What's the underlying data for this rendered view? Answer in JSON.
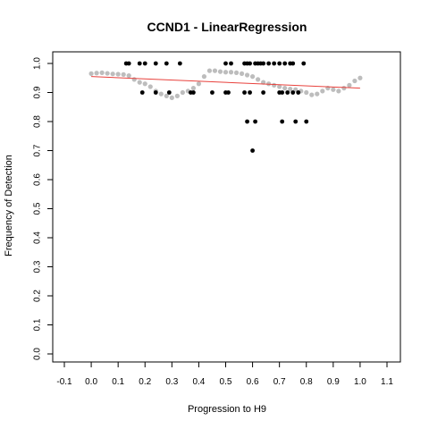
{
  "chart_data": {
    "type": "scatter",
    "title": "CCND1 - LinearRegression",
    "xlabel": "Progression to H9",
    "ylabel": "Frequency of Detection",
    "xlim": [
      -0.1,
      1.1
    ],
    "ylim": [
      0.0,
      1.0
    ],
    "x_ticks": [
      "-0.1",
      "0.0",
      "0.1",
      "0.2",
      "0.3",
      "0.4",
      "0.5",
      "0.6",
      "0.7",
      "0.8",
      "0.9",
      "1.0",
      "1.1"
    ],
    "y_ticks": [
      "0.0",
      "0.1",
      "0.2",
      "0.3",
      "0.4",
      "0.5",
      "0.6",
      "0.7",
      "0.8",
      "0.9",
      "1.0"
    ],
    "grid": false,
    "legend": "none",
    "colors": {
      "points": "#000000",
      "smooth": "#bdbdbd",
      "regression": "#e8413c"
    },
    "series": [
      {
        "kind": "points",
        "x": [
          0.13,
          0.14,
          0.18,
          0.2,
          0.24,
          0.28,
          0.33,
          0.19,
          0.24,
          0.29,
          0.37,
          0.38,
          0.45,
          0.5,
          0.51,
          0.5,
          0.52,
          0.57,
          0.58,
          0.59,
          0.61,
          0.62,
          0.63,
          0.64,
          0.66,
          0.68,
          0.7,
          0.72,
          0.74,
          0.75,
          0.79,
          0.57,
          0.59,
          0.64,
          0.7,
          0.71,
          0.73,
          0.75,
          0.77,
          0.58,
          0.61,
          0.71,
          0.76,
          0.8,
          0.6
        ],
        "y": [
          1.0,
          1.0,
          1.0,
          1.0,
          1.0,
          1.0,
          1.0,
          0.9,
          0.9,
          0.9,
          0.9,
          0.9,
          0.9,
          0.9,
          0.9,
          1.0,
          1.0,
          1.0,
          1.0,
          1.0,
          1.0,
          1.0,
          1.0,
          1.0,
          1.0,
          1.0,
          1.0,
          1.0,
          1.0,
          1.0,
          1.0,
          0.9,
          0.9,
          0.9,
          0.9,
          0.9,
          0.9,
          0.9,
          0.9,
          0.8,
          0.8,
          0.8,
          0.8,
          0.8,
          0.7
        ]
      },
      {
        "kind": "smooth",
        "x": [
          0.0,
          0.02,
          0.04,
          0.06,
          0.08,
          0.1,
          0.12,
          0.14,
          0.16,
          0.18,
          0.2,
          0.22,
          0.24,
          0.26,
          0.28,
          0.3,
          0.32,
          0.34,
          0.36,
          0.38,
          0.4,
          0.42,
          0.44,
          0.46,
          0.48,
          0.5,
          0.52,
          0.54,
          0.56,
          0.58,
          0.6,
          0.62,
          0.64,
          0.66,
          0.68,
          0.7,
          0.72,
          0.74,
          0.76,
          0.78,
          0.8,
          0.82,
          0.84,
          0.86,
          0.88,
          0.9,
          0.92,
          0.94,
          0.96,
          0.98,
          1.0
        ],
        "y": [
          0.965,
          0.967,
          0.968,
          0.966,
          0.964,
          0.963,
          0.962,
          0.958,
          0.945,
          0.935,
          0.93,
          0.92,
          0.905,
          0.895,
          0.888,
          0.882,
          0.888,
          0.9,
          0.905,
          0.915,
          0.93,
          0.955,
          0.975,
          0.975,
          0.972,
          0.97,
          0.97,
          0.968,
          0.965,
          0.96,
          0.955,
          0.945,
          0.935,
          0.93,
          0.925,
          0.92,
          0.915,
          0.912,
          0.91,
          0.905,
          0.9,
          0.892,
          0.895,
          0.905,
          0.915,
          0.91,
          0.905,
          0.915,
          0.925,
          0.94,
          0.95
        ]
      },
      {
        "kind": "regression",
        "x": [
          0.0,
          1.0
        ],
        "y": [
          0.955,
          0.915
        ]
      }
    ]
  }
}
